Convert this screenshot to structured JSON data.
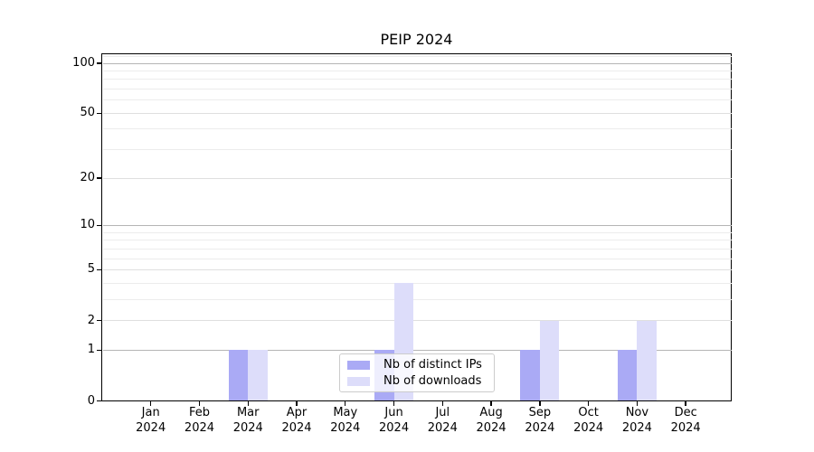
{
  "chart_data": {
    "type": "bar",
    "title": "PEIP 2024",
    "x_categories": [
      "Jan 2024",
      "Feb 2024",
      "Mar 2024",
      "Apr 2024",
      "May 2024",
      "Jun 2024",
      "Jul 2024",
      "Aug 2024",
      "Sep 2024",
      "Oct 2024",
      "Nov 2024",
      "Dec 2024"
    ],
    "series": [
      {
        "name": "Nb of distinct IPs",
        "color": "#aaaaf5",
        "values": [
          0,
          0,
          1,
          0,
          0,
          1,
          0,
          0,
          1,
          0,
          1,
          0
        ]
      },
      {
        "name": "Nb of downloads",
        "color": "#ddddfa",
        "values": [
          0,
          0,
          1,
          0,
          0,
          4,
          0,
          0,
          2,
          0,
          2,
          0
        ]
      }
    ],
    "xlabel": "",
    "ylabel": "",
    "yscale": "log1p (symlog-like, linear 0-1 then compressed log)",
    "yticks": [
      0,
      1,
      2,
      5,
      10,
      20,
      50,
      100
    ],
    "ytick_labels": [
      "0",
      "1",
      "2",
      "5",
      "10",
      "20",
      "50",
      "100"
    ],
    "ylim": [
      0,
      113
    ],
    "grid": "horizontal major and minor gridlines",
    "legend_position": "lower center inside plot",
    "bar_grouping": "pair of bars centered on each month tick"
  },
  "legend": {
    "items": [
      {
        "label": "Nb of distinct IPs",
        "color": "#aaaaf5"
      },
      {
        "label": "Nb of downloads",
        "color": "#ddddfa"
      }
    ]
  },
  "colors": {
    "background": "#ffffff",
    "spine": "#000000",
    "grid_major_decade": "#b5b5b5",
    "grid_major_other": "#dfdfdf",
    "grid_minor": "#ececec",
    "legend_border": "#cccccc",
    "text": "#000000"
  }
}
